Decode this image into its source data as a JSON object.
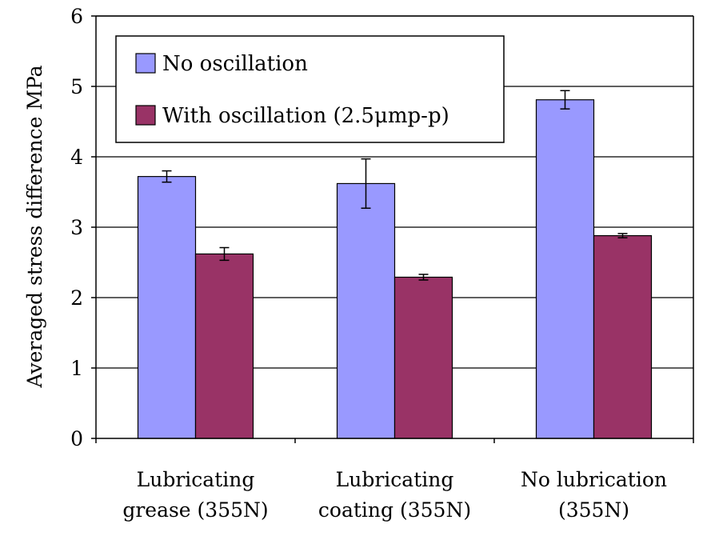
{
  "chart_data": {
    "type": "bar",
    "title": "",
    "xlabel": "",
    "ylabel": "Averaged stress difference MPa",
    "ylim": [
      0,
      6
    ],
    "yticks": [
      0,
      1,
      2,
      3,
      4,
      5,
      6
    ],
    "grid": true,
    "legend_position": "top-left",
    "categories": [
      [
        "Lubricating",
        "grease (355N)"
      ],
      [
        "Lubricating",
        "coating (355N)"
      ],
      [
        "No lubrication",
        "(355N)"
      ]
    ],
    "series": [
      {
        "name": "No oscillation",
        "color": "#9999ff",
        "values": [
          3.72,
          3.62,
          4.81
        ],
        "errors": [
          0.08,
          0.35,
          0.13
        ]
      },
      {
        "name": "With oscillation (2.5μmp-p)",
        "color": "#993366",
        "values": [
          2.62,
          2.29,
          2.88
        ],
        "errors": [
          0.09,
          0.04,
          0.03
        ]
      }
    ]
  }
}
